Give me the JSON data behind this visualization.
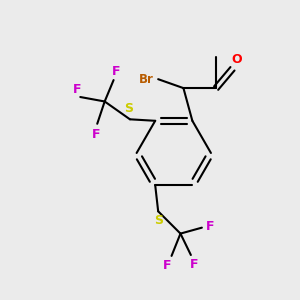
{
  "background_color": "#ebebeb",
  "bond_color": "#000000",
  "colors": {
    "Br": "#b85c00",
    "O": "#ff0000",
    "S": "#cccc00",
    "F": "#cc00cc",
    "C": "#000000"
  },
  "figsize": [
    3.0,
    3.0
  ],
  "dpi": 100
}
